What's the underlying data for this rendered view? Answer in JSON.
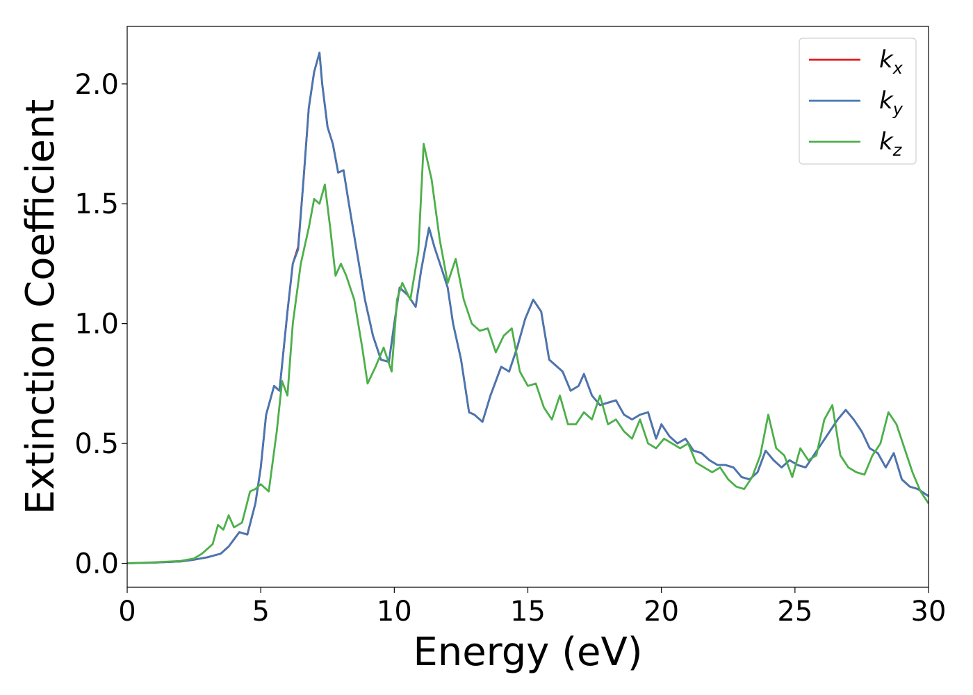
{
  "chart_data": {
    "type": "line",
    "xlabel": "Energy (eV)",
    "ylabel": "Extinction Coefficient",
    "xlim": [
      0,
      30
    ],
    "ylim": [
      -0.1,
      2.24
    ],
    "xticks": [
      0,
      5,
      10,
      15,
      20,
      25,
      30
    ],
    "yticks": [
      0.0,
      0.5,
      1.0,
      1.5,
      2.0
    ],
    "xtick_labels": [
      "0",
      "5",
      "10",
      "15",
      "20",
      "25",
      "30"
    ],
    "ytick_labels": [
      "0.0",
      "0.5",
      "1.0",
      "1.5",
      "2.0"
    ],
    "grid": false,
    "legend_position": "upper right",
    "series": [
      {
        "name": "k",
        "subscript": "x",
        "color": "#e41a1c",
        "x": [
          0,
          1,
          2,
          2.5,
          3,
          3.5,
          3.8,
          4,
          4.2,
          4.5,
          4.8,
          5,
          5.2,
          5.5,
          5.7,
          6,
          6.2,
          6.4,
          6.6,
          6.8,
          7,
          7.2,
          7.3,
          7.5,
          7.7,
          7.9,
          8.1,
          8.3,
          8.6,
          8.9,
          9.2,
          9.5,
          9.8,
          10,
          10.2,
          10.5,
          10.8,
          11,
          11.3,
          11.5,
          11.8,
          12,
          12.2,
          12.5,
          12.8,
          13,
          13.3,
          13.6,
          14,
          14.3,
          14.6,
          14.9,
          15.2,
          15.5,
          15.8,
          16,
          16.3,
          16.6,
          16.9,
          17.1,
          17.4,
          17.7,
          18,
          18.3,
          18.6,
          18.9,
          19.2,
          19.5,
          19.8,
          20,
          20.3,
          20.6,
          20.9,
          21.2,
          21.5,
          21.8,
          22.1,
          22.4,
          22.7,
          23,
          23.3,
          23.6,
          23.9,
          24.2,
          24.5,
          24.8,
          25.1,
          25.4,
          25.7,
          26,
          26.3,
          26.6,
          26.9,
          27.2,
          27.5,
          27.8,
          28.1,
          28.4,
          28.7,
          29,
          29.3,
          29.6,
          30
        ],
        "y": [
          0,
          0.003,
          0.008,
          0.015,
          0.025,
          0.04,
          0.07,
          0.1,
          0.13,
          0.12,
          0.25,
          0.4,
          0.62,
          0.74,
          0.72,
          1.05,
          1.25,
          1.32,
          1.6,
          1.9,
          2.05,
          2.13,
          2.0,
          1.82,
          1.75,
          1.63,
          1.64,
          1.5,
          1.3,
          1.1,
          0.95,
          0.85,
          0.84,
          1.0,
          1.15,
          1.12,
          1.07,
          1.22,
          1.4,
          1.32,
          1.22,
          1.15,
          1.0,
          0.85,
          0.63,
          0.62,
          0.59,
          0.7,
          0.82,
          0.8,
          0.9,
          1.02,
          1.1,
          1.05,
          0.85,
          0.83,
          0.8,
          0.72,
          0.74,
          0.79,
          0.7,
          0.66,
          0.67,
          0.68,
          0.62,
          0.6,
          0.62,
          0.63,
          0.52,
          0.58,
          0.53,
          0.5,
          0.52,
          0.47,
          0.46,
          0.43,
          0.41,
          0.41,
          0.4,
          0.36,
          0.35,
          0.38,
          0.47,
          0.43,
          0.4,
          0.43,
          0.41,
          0.4,
          0.45,
          0.5,
          0.55,
          0.6,
          0.64,
          0.6,
          0.55,
          0.48,
          0.46,
          0.4,
          0.46,
          0.35,
          0.32,
          0.31,
          0.28
        ]
      },
      {
        "name": "k",
        "subscript": "y",
        "color": "#4577b3",
        "x": [
          0,
          1,
          2,
          2.5,
          3,
          3.5,
          3.8,
          4,
          4.2,
          4.5,
          4.8,
          5,
          5.2,
          5.5,
          5.7,
          6,
          6.2,
          6.4,
          6.6,
          6.8,
          7,
          7.2,
          7.3,
          7.5,
          7.7,
          7.9,
          8.1,
          8.3,
          8.6,
          8.9,
          9.2,
          9.5,
          9.8,
          10,
          10.2,
          10.5,
          10.8,
          11,
          11.3,
          11.5,
          11.8,
          12,
          12.2,
          12.5,
          12.8,
          13,
          13.3,
          13.6,
          14,
          14.3,
          14.6,
          14.9,
          15.2,
          15.5,
          15.8,
          16,
          16.3,
          16.6,
          16.9,
          17.1,
          17.4,
          17.7,
          18,
          18.3,
          18.6,
          18.9,
          19.2,
          19.5,
          19.8,
          20,
          20.3,
          20.6,
          20.9,
          21.2,
          21.5,
          21.8,
          22.1,
          22.4,
          22.7,
          23,
          23.3,
          23.6,
          23.9,
          24.2,
          24.5,
          24.8,
          25.1,
          25.4,
          25.7,
          26,
          26.3,
          26.6,
          26.9,
          27.2,
          27.5,
          27.8,
          28.1,
          28.4,
          28.7,
          29,
          29.3,
          29.6,
          30
        ],
        "y": [
          0,
          0.003,
          0.008,
          0.015,
          0.025,
          0.04,
          0.07,
          0.1,
          0.13,
          0.12,
          0.25,
          0.4,
          0.62,
          0.74,
          0.72,
          1.05,
          1.25,
          1.31,
          1.6,
          1.9,
          2.05,
          2.13,
          2.0,
          1.82,
          1.75,
          1.63,
          1.64,
          1.5,
          1.3,
          1.1,
          0.95,
          0.85,
          0.84,
          1.0,
          1.15,
          1.12,
          1.07,
          1.22,
          1.4,
          1.32,
          1.22,
          1.15,
          1.0,
          0.85,
          0.63,
          0.62,
          0.59,
          0.7,
          0.82,
          0.8,
          0.9,
          1.02,
          1.1,
          1.05,
          0.85,
          0.83,
          0.8,
          0.72,
          0.74,
          0.79,
          0.7,
          0.66,
          0.67,
          0.68,
          0.62,
          0.6,
          0.62,
          0.63,
          0.52,
          0.58,
          0.53,
          0.5,
          0.52,
          0.47,
          0.46,
          0.43,
          0.41,
          0.41,
          0.4,
          0.36,
          0.35,
          0.38,
          0.47,
          0.43,
          0.4,
          0.43,
          0.41,
          0.4,
          0.45,
          0.5,
          0.55,
          0.6,
          0.64,
          0.6,
          0.55,
          0.48,
          0.46,
          0.4,
          0.46,
          0.35,
          0.32,
          0.31,
          0.28
        ]
      },
      {
        "name": "k",
        "subscript": "z",
        "color": "#4daf4a",
        "x": [
          0,
          1,
          2,
          2.5,
          2.8,
          3,
          3.2,
          3.4,
          3.6,
          3.8,
          4,
          4.3,
          4.6,
          4.8,
          5,
          5.3,
          5.6,
          5.8,
          6,
          6.2,
          6.5,
          6.8,
          7,
          7.2,
          7.4,
          7.6,
          7.8,
          8,
          8.2,
          8.5,
          8.8,
          9,
          9.3,
          9.6,
          9.9,
          10.1,
          10.3,
          10.6,
          10.9,
          11.1,
          11.4,
          11.7,
          12,
          12.3,
          12.6,
          12.9,
          13.2,
          13.5,
          13.8,
          14.1,
          14.4,
          14.7,
          15,
          15.3,
          15.6,
          15.9,
          16.2,
          16.5,
          16.8,
          17.1,
          17.4,
          17.7,
          18,
          18.3,
          18.6,
          18.9,
          19.2,
          19.5,
          19.8,
          20.1,
          20.4,
          20.7,
          21,
          21.3,
          21.6,
          21.9,
          22.2,
          22.5,
          22.8,
          23.1,
          23.4,
          23.7,
          24,
          24.3,
          24.6,
          24.9,
          25.2,
          25.5,
          25.8,
          26.1,
          26.4,
          26.7,
          27,
          27.3,
          27.6,
          27.9,
          28.2,
          28.5,
          28.8,
          29.1,
          29.4,
          29.7,
          30
        ],
        "y": [
          0,
          0.004,
          0.01,
          0.02,
          0.04,
          0.06,
          0.08,
          0.16,
          0.14,
          0.2,
          0.15,
          0.17,
          0.3,
          0.31,
          0.33,
          0.3,
          0.55,
          0.76,
          0.7,
          1.0,
          1.25,
          1.4,
          1.52,
          1.5,
          1.58,
          1.4,
          1.2,
          1.25,
          1.2,
          1.1,
          0.9,
          0.75,
          0.82,
          0.9,
          0.8,
          1.1,
          1.17,
          1.1,
          1.3,
          1.75,
          1.6,
          1.35,
          1.17,
          1.27,
          1.1,
          1.0,
          0.97,
          0.98,
          0.88,
          0.95,
          0.98,
          0.8,
          0.74,
          0.75,
          0.65,
          0.6,
          0.7,
          0.58,
          0.58,
          0.63,
          0.6,
          0.7,
          0.58,
          0.6,
          0.55,
          0.52,
          0.6,
          0.5,
          0.48,
          0.52,
          0.5,
          0.48,
          0.5,
          0.42,
          0.4,
          0.38,
          0.4,
          0.35,
          0.32,
          0.31,
          0.36,
          0.45,
          0.62,
          0.48,
          0.45,
          0.36,
          0.48,
          0.43,
          0.45,
          0.6,
          0.66,
          0.45,
          0.4,
          0.38,
          0.37,
          0.45,
          0.5,
          0.63,
          0.58,
          0.48,
          0.38,
          0.3,
          0.25
        ]
      }
    ]
  }
}
